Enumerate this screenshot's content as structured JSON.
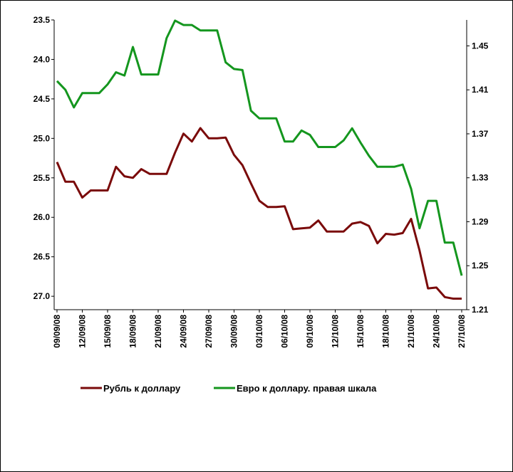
{
  "chart_data": {
    "type": "line",
    "x": [
      "09/09/08",
      "10/09/08",
      "11/09/08",
      "12/09/08",
      "13/09/08",
      "14/09/08",
      "15/09/08",
      "16/09/08",
      "17/09/08",
      "18/09/08",
      "19/09/08",
      "20/09/08",
      "21/09/08",
      "22/09/08",
      "23/09/08",
      "24/09/08",
      "25/09/08",
      "26/09/08",
      "27/09/08",
      "28/09/08",
      "29/09/08",
      "30/09/08",
      "01/10/08",
      "02/10/08",
      "03/10/08",
      "04/10/08",
      "05/10/08",
      "06/10/08",
      "07/10/08",
      "08/10/08",
      "09/10/08",
      "10/10/08",
      "11/10/08",
      "12/10/08",
      "13/10/08",
      "14/10/08",
      "15/10/08",
      "16/10/08",
      "17/10/08",
      "18/10/08",
      "19/10/08",
      "20/10/08",
      "21/10/08",
      "22/10/08",
      "23/10/08",
      "24/10/08",
      "25/10/08",
      "26/10/08",
      "27/10/08"
    ],
    "xticks": [
      "09/09/08",
      "12/09/08",
      "15/09/08",
      "18/09/08",
      "21/09/08",
      "24/09/08",
      "27/09/08",
      "30/09/08",
      "03/10/08",
      "06/10/08",
      "09/10/08",
      "12/10/08",
      "15/10/08",
      "18/10/08",
      "21/10/08",
      "24/10/08",
      "27/10/08"
    ],
    "series": [
      {
        "name": "Рубль к доллару",
        "color": "#7a0a0a",
        "axis": "y",
        "values": [
          25.3,
          25.55,
          25.55,
          25.75,
          25.66,
          25.66,
          25.66,
          25.36,
          25.48,
          25.5,
          25.39,
          25.45,
          25.45,
          25.45,
          25.18,
          24.94,
          25.04,
          24.87,
          25.0,
          25.0,
          24.99,
          25.21,
          25.34,
          25.57,
          25.79,
          25.87,
          25.87,
          25.86,
          26.15,
          26.14,
          26.13,
          26.04,
          26.18,
          26.18,
          26.18,
          26.08,
          26.06,
          26.11,
          26.33,
          26.21,
          26.22,
          26.2,
          26.02,
          26.42,
          26.9,
          26.89,
          27.01,
          27.03,
          27.03
        ]
      },
      {
        "name": "Евро к доллару. правая шкала",
        "color": "#14961e",
        "axis": "y2",
        "values": [
          1.418,
          1.41,
          1.394,
          1.407,
          1.407,
          1.407,
          1.415,
          1.426,
          1.423,
          1.449,
          1.424,
          1.424,
          1.424,
          1.457,
          1.473,
          1.469,
          1.469,
          1.464,
          1.464,
          1.464,
          1.435,
          1.429,
          1.428,
          1.391,
          1.384,
          1.384,
          1.384,
          1.363,
          1.363,
          1.373,
          1.369,
          1.358,
          1.358,
          1.358,
          1.364,
          1.375,
          1.362,
          1.35,
          1.34,
          1.34,
          1.34,
          1.342,
          1.32,
          1.284,
          1.309,
          1.309,
          1.271,
          1.271,
          1.241
        ]
      }
    ],
    "ylim": [
      23.5,
      27.17
    ],
    "inverted_y": true,
    "yticks": [
      {
        "value": 23.5,
        "label": "23.5"
      },
      {
        "value": 24,
        "label": "24.0"
      },
      {
        "value": 24.5,
        "label": "24.5"
      },
      {
        "value": 25,
        "label": "25.0"
      },
      {
        "value": 25.5,
        "label": "25.5"
      },
      {
        "value": 26,
        "label": "26.0"
      },
      {
        "value": 26.5,
        "label": "26.5"
      },
      {
        "value": 27,
        "label": "27.0"
      }
    ],
    "y2lim": [
      1.21,
      1.4736
    ],
    "y2ticks": [
      1.21,
      1.25,
      1.29,
      1.33,
      1.37,
      1.41,
      1.45
    ],
    "legend": "bottom"
  }
}
